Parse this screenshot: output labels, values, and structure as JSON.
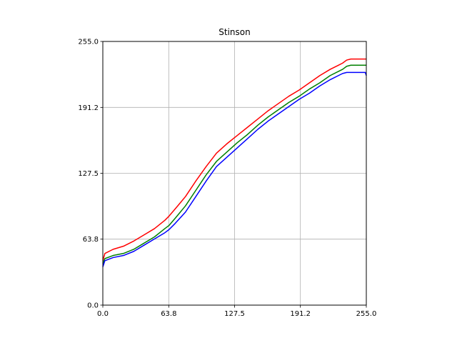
{
  "chart_data": {
    "type": "line",
    "title": "Stinson",
    "xlabel": "",
    "ylabel": "",
    "xlim": [
      0,
      255
    ],
    "ylim": [
      0,
      255
    ],
    "xticks": [
      0,
      63.8,
      127.5,
      191.2,
      255
    ],
    "xtick_labels": [
      "0.0",
      "63.8",
      "127.5",
      "191.2",
      "255.0"
    ],
    "yticks": [
      0,
      63.8,
      127.5,
      191.2,
      255
    ],
    "ytick_labels": [
      "0.0",
      "63.8",
      "127.5",
      "191.2",
      "255.0"
    ],
    "grid": true,
    "legend": "none",
    "series": [
      {
        "color": "#ff0000",
        "x": [
          0,
          2,
          10,
          20,
          30,
          40,
          50,
          60,
          64,
          70,
          80,
          90,
          100,
          110,
          120,
          130,
          140,
          150,
          160,
          170,
          180,
          190,
          200,
          210,
          220,
          228,
          232,
          236,
          240,
          255
        ],
        "y": [
          43,
          50,
          54,
          57,
          62,
          68,
          74,
          82,
          86,
          93,
          105,
          120,
          134,
          147,
          156,
          164,
          172,
          180,
          188,
          195,
          202,
          208,
          215,
          222,
          228,
          232,
          234,
          237,
          238,
          238
        ]
      },
      {
        "color": "#008000",
        "x": [
          0,
          2,
          10,
          20,
          30,
          40,
          50,
          60,
          64,
          70,
          80,
          90,
          100,
          110,
          120,
          130,
          140,
          150,
          160,
          170,
          180,
          190,
          200,
          210,
          220,
          228,
          232,
          236,
          240,
          255
        ],
        "y": [
          40,
          45,
          48,
          50,
          54,
          60,
          66,
          74,
          77,
          84,
          96,
          111,
          126,
          139,
          148,
          157,
          165,
          174,
          182,
          189,
          196,
          202,
          209,
          215,
          222,
          226,
          228,
          231,
          232,
          232
        ]
      },
      {
        "color": "#0000ff",
        "x": [
          0,
          2,
          10,
          20,
          30,
          40,
          50,
          60,
          64,
          70,
          80,
          90,
          100,
          110,
          120,
          130,
          140,
          150,
          160,
          170,
          180,
          190,
          200,
          210,
          220,
          228,
          232,
          236,
          240,
          254,
          255
        ],
        "y": [
          37,
          43,
          46,
          48,
          52,
          58,
          64,
          70,
          73,
          79,
          90,
          105,
          120,
          134,
          143,
          152,
          161,
          170,
          178,
          185,
          192,
          199,
          205,
          212,
          218,
          222,
          224,
          225,
          225,
          225,
          222
        ]
      }
    ]
  }
}
